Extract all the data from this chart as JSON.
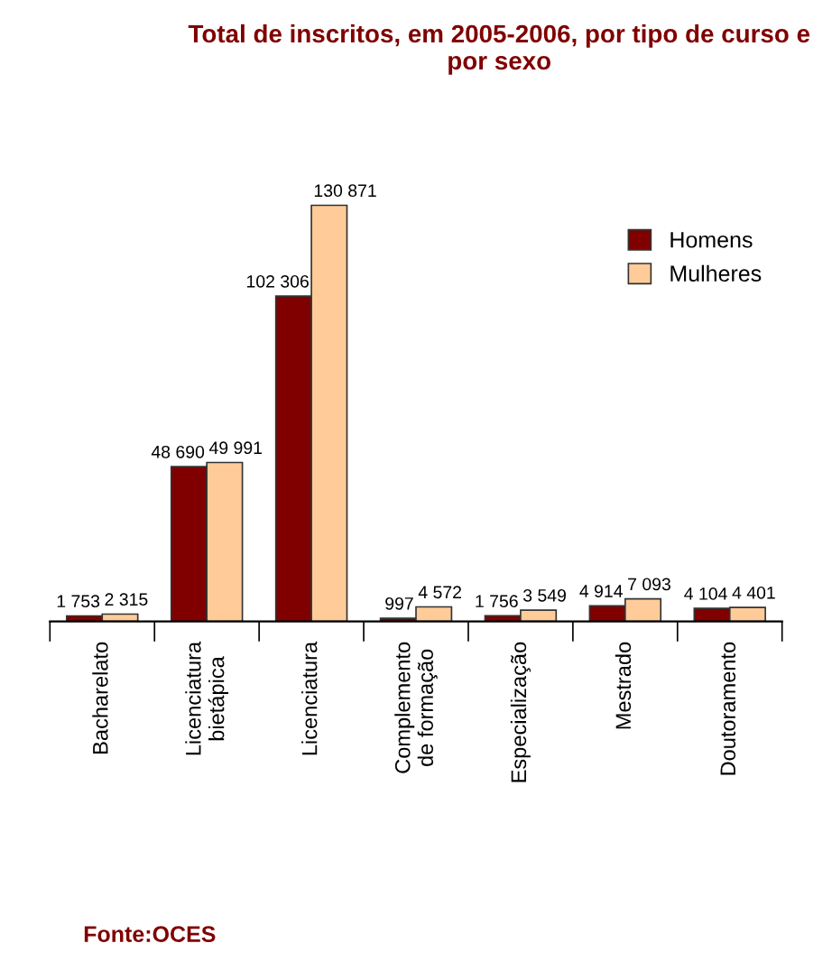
{
  "chart_data": {
    "type": "bar",
    "title": "Total de inscritos, em 2005-2006, por tipo de curso e por sexo",
    "categories": [
      "Bacharelato",
      "Licenciatura\nbietápica",
      "Licenciatura",
      "Complemento\nde formação",
      "Especialização",
      "Mestrado",
      "Doutoramento"
    ],
    "series": [
      {
        "name": "Homens",
        "color": "#800000",
        "values": [
          1753,
          48690,
          102306,
          997,
          1756,
          4914,
          4104
        ],
        "value_labels": [
          "1 753",
          "48 690",
          "102 306",
          "997",
          "1 756",
          "4 914",
          "4 104"
        ]
      },
      {
        "name": "Mulheres",
        "color": "#ffcc99",
        "values": [
          2315,
          49991,
          130871,
          4572,
          3549,
          7093,
          4401
        ],
        "value_labels": [
          "2 315",
          "49 991",
          "130 871",
          "4 572",
          "3 549",
          "7 093",
          "4 401"
        ]
      }
    ],
    "legend": "right",
    "grid": false,
    "annotations": [
      "Fonte:OCES"
    ]
  }
}
